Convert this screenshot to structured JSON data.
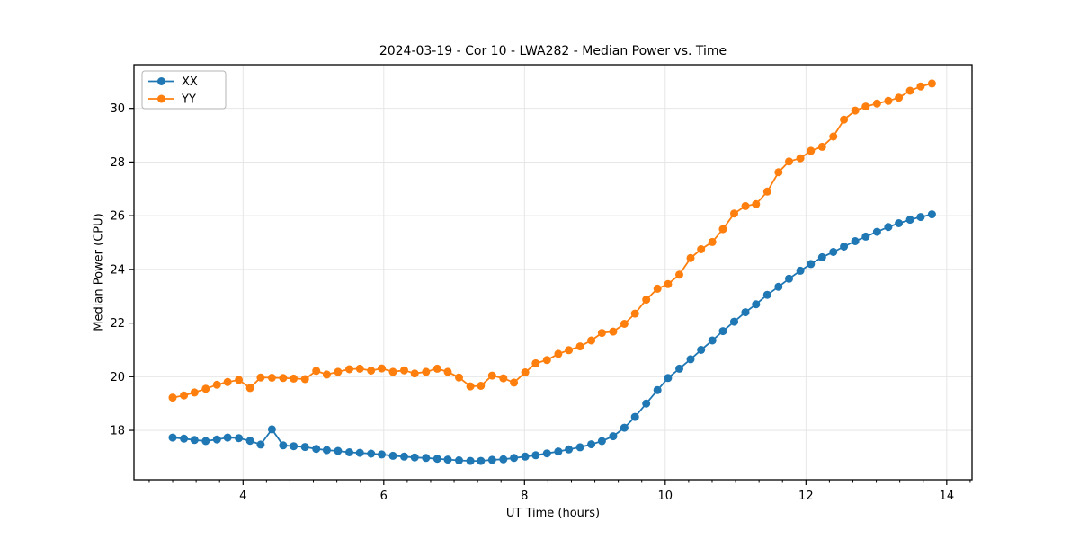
{
  "figure": {
    "background": "#ffffff"
  },
  "chart_data": {
    "type": "line",
    "title": "2024-03-19 - Cor 10 - LWA282 - Median Power vs. Time",
    "xlabel": "UT Time (hours)",
    "ylabel": "Median Power (CPU)",
    "xlim": [
      2.45,
      14.36
    ],
    "ylim": [
      16.16,
      31.63
    ],
    "x_ticks": [
      4,
      6,
      8,
      10,
      12,
      14
    ],
    "x_minor_tick_step": 0.33333,
    "y_ticks": [
      18,
      20,
      22,
      24,
      26,
      28,
      30
    ],
    "grid": true,
    "legend_position": "upper left",
    "legend_labels": [
      "XX",
      "YY"
    ],
    "colors": {
      "xx": "#1f77b4",
      "yy": "#ff7f0e",
      "grid": "#e3e3e3",
      "spine": "#000000",
      "text": "#000000"
    },
    "x": [
      3.0,
      3.16,
      3.31,
      3.47,
      3.63,
      3.78,
      3.94,
      4.1,
      4.25,
      4.41,
      4.57,
      4.72,
      4.88,
      5.04,
      5.19,
      5.35,
      5.51,
      5.66,
      5.82,
      5.97,
      6.13,
      6.29,
      6.44,
      6.6,
      6.76,
      6.91,
      7.07,
      7.23,
      7.38,
      7.54,
      7.7,
      7.85,
      8.01,
      8.16,
      8.32,
      8.48,
      8.63,
      8.79,
      8.95,
      9.1,
      9.26,
      9.42,
      9.57,
      9.73,
      9.89,
      10.04,
      10.2,
      10.36,
      10.51,
      10.67,
      10.82,
      10.98,
      11.14,
      11.29,
      11.45,
      11.61,
      11.76,
      11.92,
      12.07,
      12.23,
      12.39,
      12.54,
      12.7,
      12.85,
      13.01,
      13.17,
      13.32,
      13.48,
      13.63,
      13.79
    ],
    "series": [
      {
        "name": "XX",
        "color": "#1f77b4",
        "values": [
          17.73,
          17.69,
          17.64,
          17.6,
          17.66,
          17.73,
          17.71,
          17.61,
          17.47,
          18.04,
          17.44,
          17.41,
          17.38,
          17.31,
          17.26,
          17.23,
          17.18,
          17.16,
          17.13,
          17.1,
          17.05,
          17.02,
          16.99,
          16.97,
          16.94,
          16.91,
          16.88,
          16.86,
          16.86,
          16.9,
          16.92,
          16.97,
          17.02,
          17.07,
          17.14,
          17.21,
          17.29,
          17.37,
          17.48,
          17.6,
          17.78,
          18.1,
          18.5,
          19.0,
          19.5,
          19.95,
          20.3,
          20.65,
          21.0,
          21.35,
          21.7,
          22.05,
          22.4,
          22.7,
          23.05,
          23.35,
          23.65,
          23.95,
          24.2,
          24.45,
          24.65,
          24.85,
          25.05,
          25.22,
          25.4,
          25.58,
          25.72,
          25.85,
          25.95,
          26.05
        ]
      },
      {
        "name": "YY",
        "color": "#ff7f0e",
        "values": [
          19.22,
          19.3,
          19.41,
          19.55,
          19.7,
          19.8,
          19.88,
          19.58,
          19.97,
          19.96,
          19.95,
          19.93,
          19.91,
          20.22,
          20.08,
          20.18,
          20.28,
          20.3,
          20.23,
          20.31,
          20.18,
          20.24,
          20.12,
          20.18,
          20.3,
          20.18,
          19.97,
          19.64,
          19.66,
          20.04,
          19.94,
          19.78,
          20.16,
          20.5,
          20.62,
          20.85,
          20.99,
          21.13,
          21.35,
          21.63,
          21.68,
          21.97,
          22.35,
          22.87,
          23.28,
          23.45,
          23.8,
          24.42,
          24.75,
          25.02,
          25.5,
          26.08,
          26.36,
          26.43,
          26.9,
          27.62,
          28.02,
          28.14,
          28.42,
          28.57,
          28.95,
          29.58,
          29.92,
          30.07,
          30.18,
          30.28,
          30.4,
          30.66,
          30.82,
          30.93
        ]
      }
    ]
  }
}
